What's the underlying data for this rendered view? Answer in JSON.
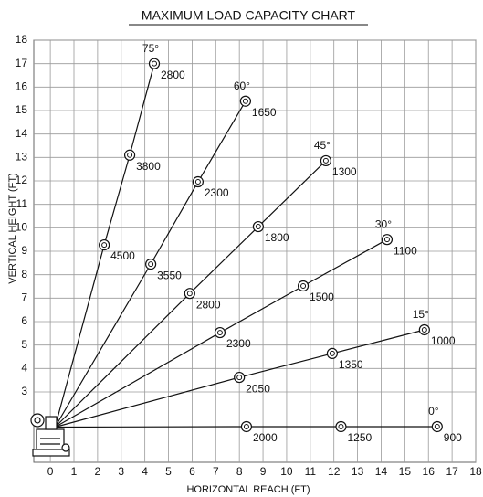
{
  "chart_data": {
    "type": "line",
    "title": "MAXIMUM LOAD CAPACITY CHART",
    "x_label": "HORIZONTAL REACH (FT)",
    "y_label": "VERTICAL HEIGHT (FT)",
    "xlim": [
      -0.7,
      18
    ],
    "ylim": [
      0,
      18
    ],
    "xticks": [
      0,
      1,
      2,
      3,
      4,
      5,
      6,
      7,
      8,
      9,
      10,
      11,
      12,
      13,
      14,
      15,
      16,
      17,
      18
    ],
    "yticks": [
      3,
      4,
      5,
      6,
      7,
      8,
      9,
      10,
      11,
      12,
      13,
      14,
      15,
      16,
      17,
      18
    ],
    "grid": true,
    "color": "#111111",
    "origin": {
      "x": 0.2,
      "y": 1.5
    },
    "series": [
      {
        "name": "75°",
        "x": [
          2.28,
          3.36,
          4.4
        ],
        "values": [
          9.27,
          13.1,
          17.0
        ],
        "loads": [
          4500,
          3800,
          2800
        ]
      },
      {
        "name": "60°",
        "x": [
          4.25,
          6.25,
          8.26
        ],
        "values": [
          8.45,
          11.96,
          15.4
        ],
        "loads": [
          3550,
          2300,
          1650
        ]
      },
      {
        "name": "45°",
        "x": [
          5.9,
          8.8,
          11.66
        ],
        "values": [
          7.2,
          10.05,
          12.86
        ],
        "loads": [
          2800,
          1800,
          1300
        ]
      },
      {
        "name": "30°",
        "x": [
          7.18,
          10.7,
          14.25
        ],
        "values": [
          5.53,
          7.52,
          9.5
        ],
        "loads": [
          2300,
          1500,
          1100
        ]
      },
      {
        "name": "15°",
        "x": [
          8.0,
          11.93,
          15.83
        ],
        "values": [
          3.62,
          4.64,
          5.65
        ],
        "loads": [
          2050,
          1350,
          1000
        ]
      },
      {
        "name": "0°",
        "x": [
          8.3,
          12.3,
          16.37
        ],
        "values": [
          1.52,
          1.52,
          1.52
        ],
        "loads": [
          2000,
          1250,
          900
        ]
      }
    ]
  }
}
